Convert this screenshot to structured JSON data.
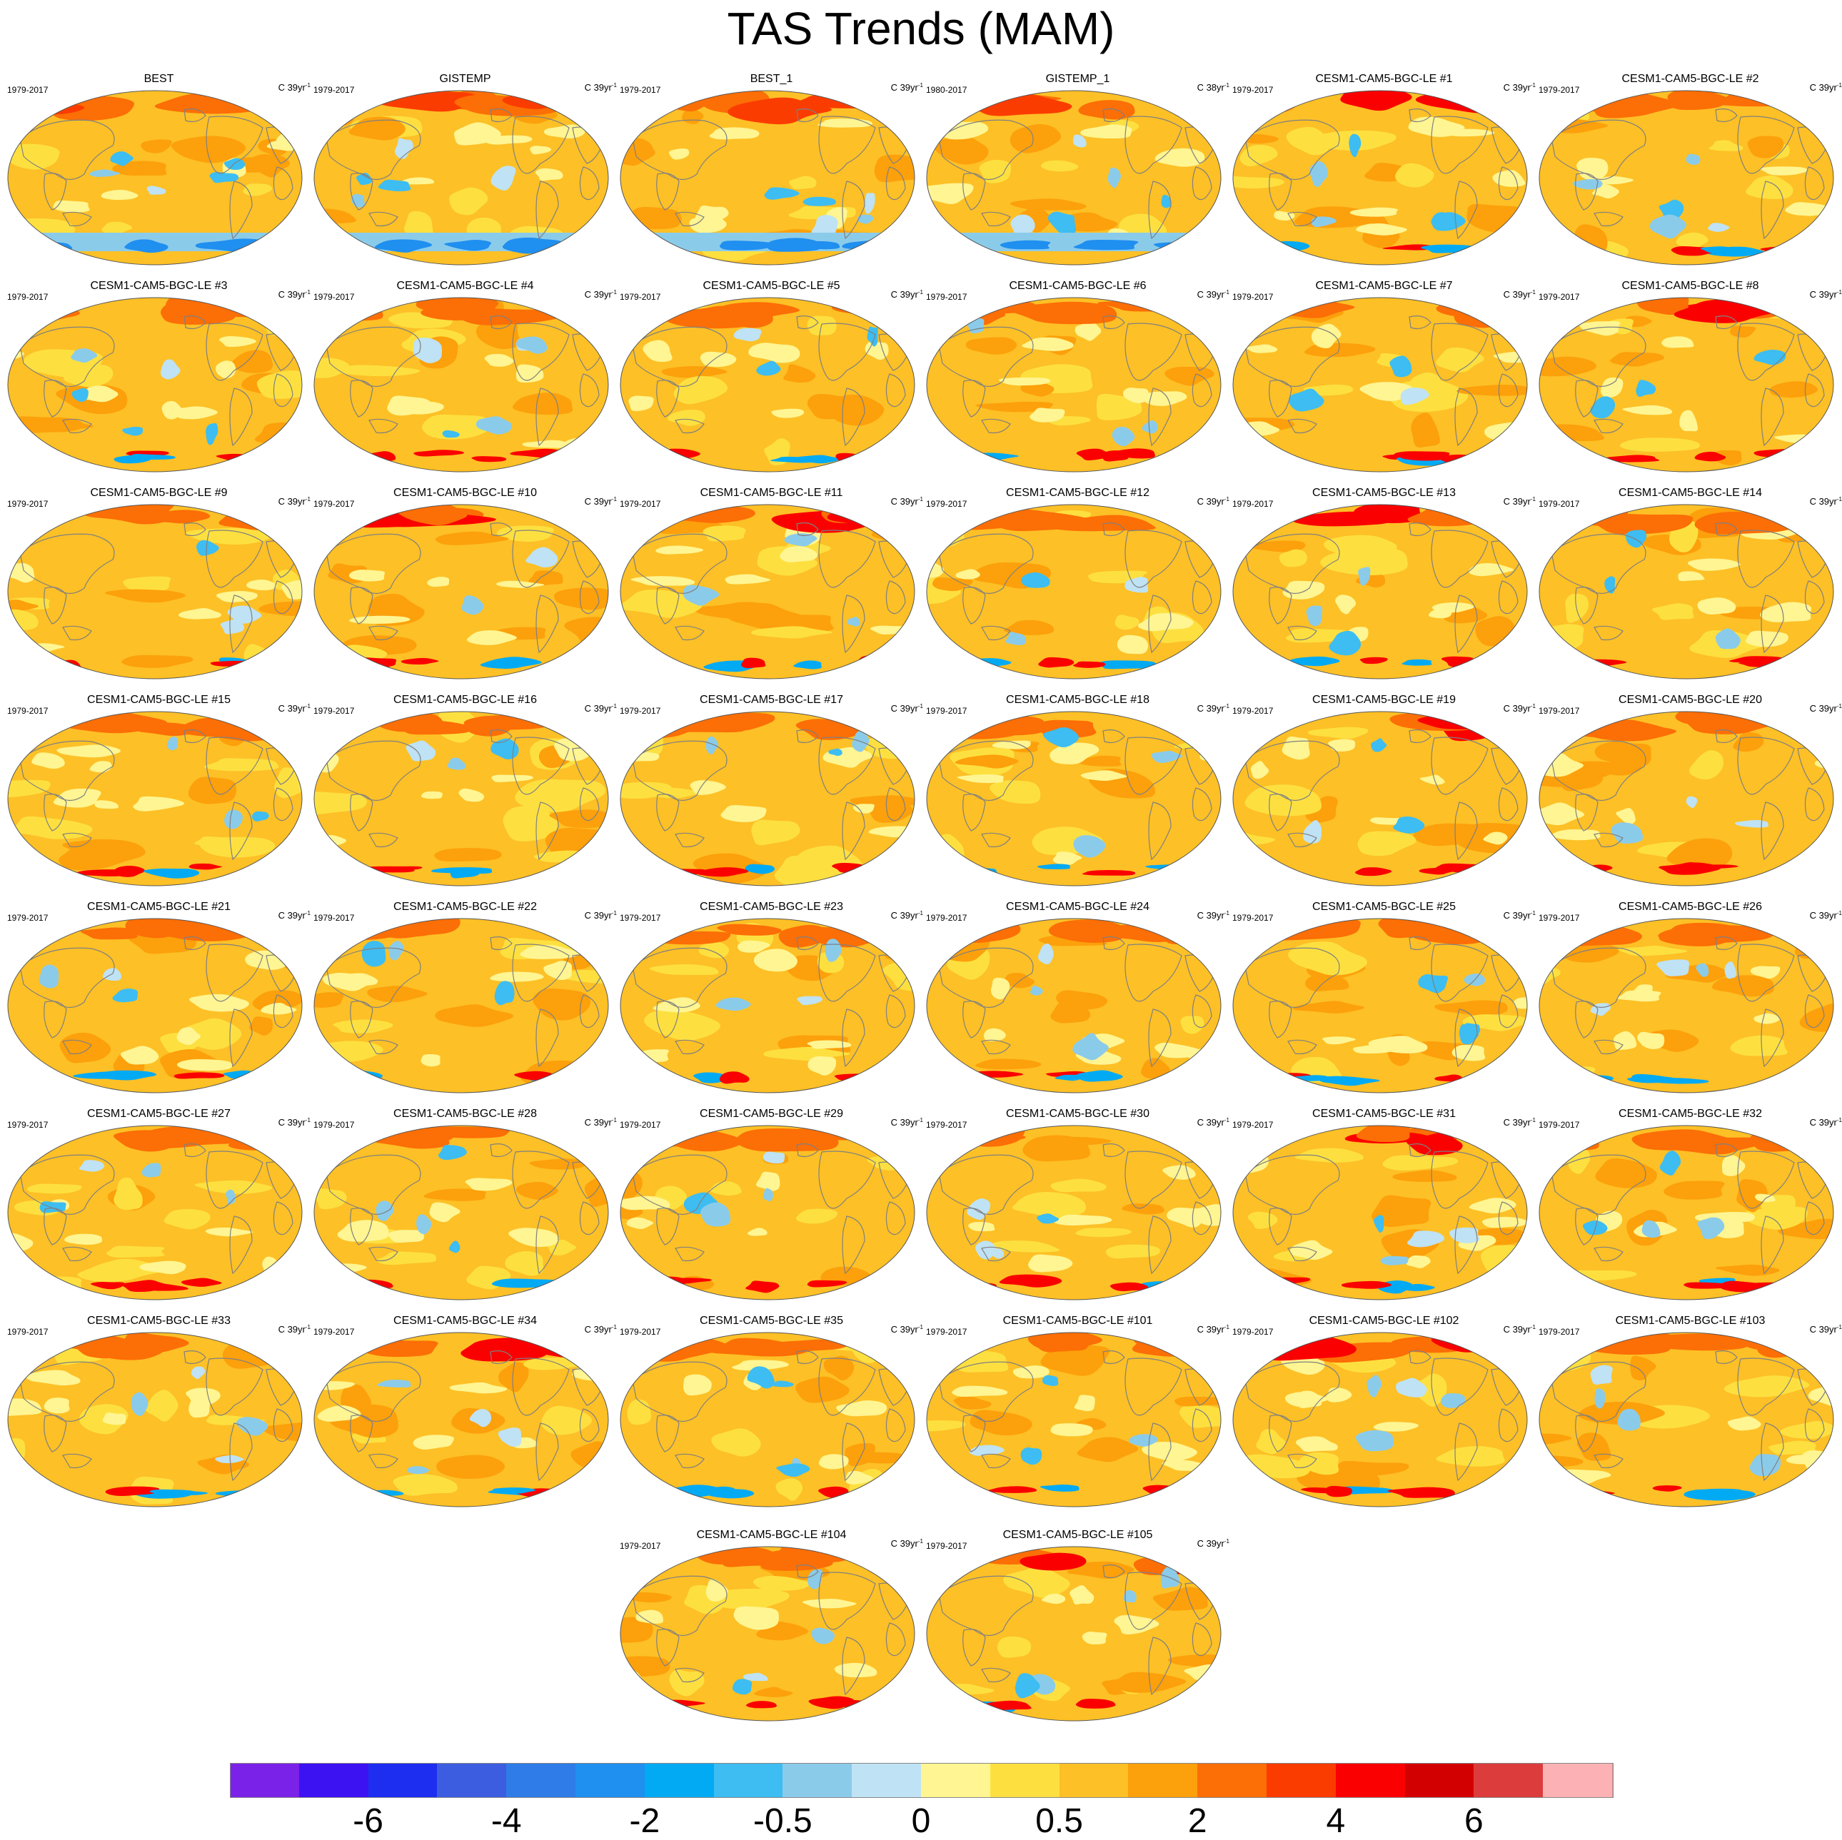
{
  "title": "TAS Trends (MAM)",
  "colors": {
    "levels": [
      "#7b22e8",
      "#3c12f2",
      "#1e2ef0",
      "#3c5de0",
      "#2f7ce8",
      "#1f8ff0",
      "#02aaf4",
      "#3dbdf1",
      "#8bcbea",
      "#bfe2f4",
      "#fff592",
      "#fde040",
      "#fdc026",
      "#fca00b",
      "#fc6e06",
      "#fb3c00",
      "#fb0000",
      "#d20000",
      "#dc3c3c",
      "#fcb2b4"
    ],
    "land_outline": "#808080",
    "map_edge": "#555555"
  },
  "chart_data": {
    "type": "map-panel-grid",
    "variable": "TAS",
    "season": "MAM",
    "title": "TAS Trends (MAM)",
    "projection": "Robinson",
    "colorbar": {
      "tick_labels": [
        "-6",
        "-4",
        "-2",
        "-0.5",
        "0",
        "0.5",
        "2",
        "4",
        "6"
      ],
      "n_colors": 20
    },
    "panels": [
      {
        "name": "BEST",
        "period": "1979-2017",
        "unit": "C 39yr",
        "exp": "-1",
        "style": 1,
        "seed": 11
      },
      {
        "name": "GISTEMP",
        "period": "1979-2017",
        "unit": "C 39yr",
        "exp": "-1",
        "style": 1,
        "seed": 12
      },
      {
        "name": "BEST_1",
        "period": "1979-2017",
        "unit": "C 39yr",
        "exp": "-1",
        "style": 1,
        "seed": 13
      },
      {
        "name": "GISTEMP_1",
        "period": "1980-2017",
        "unit": "C 38yr",
        "exp": "-1",
        "style": 1,
        "seed": 14
      },
      {
        "name": "CESM1-CAM5-BGC-LE #1",
        "period": "1979-2017",
        "unit": "C 39yr",
        "exp": "-1",
        "style": 2,
        "seed": 21
      },
      {
        "name": "CESM1-CAM5-BGC-LE #2",
        "period": "1979-2017",
        "unit": "C 39yr",
        "exp": "-1",
        "style": 0,
        "seed": 22
      },
      {
        "name": "CESM1-CAM5-BGC-LE #3",
        "period": "1979-2017",
        "unit": "C 39yr",
        "exp": "-1",
        "style": 0,
        "seed": 23
      },
      {
        "name": "CESM1-CAM5-BGC-LE #4",
        "period": "1979-2017",
        "unit": "C 39yr",
        "exp": "-1",
        "style": 0,
        "seed": 24
      },
      {
        "name": "CESM1-CAM5-BGC-LE #5",
        "period": "1979-2017",
        "unit": "C 39yr",
        "exp": "-1",
        "style": 0,
        "seed": 25
      },
      {
        "name": "CESM1-CAM5-BGC-LE #6",
        "period": "1979-2017",
        "unit": "C 39yr",
        "exp": "-1",
        "style": 0,
        "seed": 26
      },
      {
        "name": "CESM1-CAM5-BGC-LE #7",
        "period": "1979-2017",
        "unit": "C 39yr",
        "exp": "-1",
        "style": 0,
        "seed": 27
      },
      {
        "name": "CESM1-CAM5-BGC-LE #8",
        "period": "1979-2017",
        "unit": "C 39yr",
        "exp": "-1",
        "style": 2,
        "seed": 28
      },
      {
        "name": "CESM1-CAM5-BGC-LE #9",
        "period": "1979-2017",
        "unit": "C 39yr",
        "exp": "-1",
        "style": 0,
        "seed": 29
      },
      {
        "name": "CESM1-CAM5-BGC-LE #10",
        "period": "1979-2017",
        "unit": "C 39yr",
        "exp": "-1",
        "style": 2,
        "seed": 30
      },
      {
        "name": "CESM1-CAM5-BGC-LE #11",
        "period": "1979-2017",
        "unit": "C 39yr",
        "exp": "-1",
        "style": 2,
        "seed": 31
      },
      {
        "name": "CESM1-CAM5-BGC-LE #12",
        "period": "1979-2017",
        "unit": "C 39yr",
        "exp": "-1",
        "style": 0,
        "seed": 32
      },
      {
        "name": "CESM1-CAM5-BGC-LE #13",
        "period": "1979-2017",
        "unit": "C 39yr",
        "exp": "-1",
        "style": 2,
        "seed": 33
      },
      {
        "name": "CESM1-CAM5-BGC-LE #14",
        "period": "1979-2017",
        "unit": "C 39yr",
        "exp": "-1",
        "style": 0,
        "seed": 34
      },
      {
        "name": "CESM1-CAM5-BGC-LE #15",
        "period": "1979-2017",
        "unit": "C 39yr",
        "exp": "-1",
        "style": 0,
        "seed": 35
      },
      {
        "name": "CESM1-CAM5-BGC-LE #16",
        "period": "1979-2017",
        "unit": "C 39yr",
        "exp": "-1",
        "style": 0,
        "seed": 36
      },
      {
        "name": "CESM1-CAM5-BGC-LE #17",
        "period": "1979-2017",
        "unit": "C 39yr",
        "exp": "-1",
        "style": 0,
        "seed": 37
      },
      {
        "name": "CESM1-CAM5-BGC-LE #18",
        "period": "1979-2017",
        "unit": "C 39yr",
        "exp": "-1",
        "style": 0,
        "seed": 38
      },
      {
        "name": "CESM1-CAM5-BGC-LE #19",
        "period": "1979-2017",
        "unit": "C 39yr",
        "exp": "-1",
        "style": 2,
        "seed": 39
      },
      {
        "name": "CESM1-CAM5-BGC-LE #20",
        "period": "1979-2017",
        "unit": "C 39yr",
        "exp": "-1",
        "style": 0,
        "seed": 40
      },
      {
        "name": "CESM1-CAM5-BGC-LE #21",
        "period": "1979-2017",
        "unit": "C 39yr",
        "exp": "-1",
        "style": 0,
        "seed": 41
      },
      {
        "name": "CESM1-CAM5-BGC-LE #22",
        "period": "1979-2017",
        "unit": "C 39yr",
        "exp": "-1",
        "style": 0,
        "seed": 42
      },
      {
        "name": "CESM1-CAM5-BGC-LE #23",
        "period": "1979-2017",
        "unit": "C 39yr",
        "exp": "-1",
        "style": 0,
        "seed": 43
      },
      {
        "name": "CESM1-CAM5-BGC-LE #24",
        "period": "1979-2017",
        "unit": "C 39yr",
        "exp": "-1",
        "style": 0,
        "seed": 44
      },
      {
        "name": "CESM1-CAM5-BGC-LE #25",
        "period": "1979-2017",
        "unit": "C 39yr",
        "exp": "-1",
        "style": 0,
        "seed": 45
      },
      {
        "name": "CESM1-CAM5-BGC-LE #26",
        "period": "1979-2017",
        "unit": "C 39yr",
        "exp": "-1",
        "style": 0,
        "seed": 46
      },
      {
        "name": "CESM1-CAM5-BGC-LE #27",
        "period": "1979-2017",
        "unit": "C 39yr",
        "exp": "-1",
        "style": 0,
        "seed": 47
      },
      {
        "name": "CESM1-CAM5-BGC-LE #28",
        "period": "1979-2017",
        "unit": "C 39yr",
        "exp": "-1",
        "style": 0,
        "seed": 48
      },
      {
        "name": "CESM1-CAM5-BGC-LE #29",
        "period": "1979-2017",
        "unit": "C 39yr",
        "exp": "-1",
        "style": 0,
        "seed": 49
      },
      {
        "name": "CESM1-CAM5-BGC-LE #30",
        "period": "1979-2017",
        "unit": "C 39yr",
        "exp": "-1",
        "style": 0,
        "seed": 50
      },
      {
        "name": "CESM1-CAM5-BGC-LE #31",
        "period": "1979-2017",
        "unit": "C 39yr",
        "exp": "-1",
        "style": 2,
        "seed": 51
      },
      {
        "name": "CESM1-CAM5-BGC-LE #32",
        "period": "1979-2017",
        "unit": "C 39yr",
        "exp": "-1",
        "style": 0,
        "seed": 52
      },
      {
        "name": "CESM1-CAM5-BGC-LE #33",
        "period": "1979-2017",
        "unit": "C 39yr",
        "exp": "-1",
        "style": 0,
        "seed": 53
      },
      {
        "name": "CESM1-CAM5-BGC-LE #34",
        "period": "1979-2017",
        "unit": "C 39yr",
        "exp": "-1",
        "style": 2,
        "seed": 54
      },
      {
        "name": "CESM1-CAM5-BGC-LE #35",
        "period": "1979-2017",
        "unit": "C 39yr",
        "exp": "-1",
        "style": 0,
        "seed": 55
      },
      {
        "name": "CESM1-CAM5-BGC-LE #101",
        "period": "1979-2017",
        "unit": "C 39yr",
        "exp": "-1",
        "style": 0,
        "seed": 56
      },
      {
        "name": "CESM1-CAM5-BGC-LE #102",
        "period": "1979-2017",
        "unit": "C 39yr",
        "exp": "-1",
        "style": 2,
        "seed": 57
      },
      {
        "name": "CESM1-CAM5-BGC-LE #103",
        "period": "1979-2017",
        "unit": "C 39yr",
        "exp": "-1",
        "style": 0,
        "seed": 58
      },
      {
        "name": "CESM1-CAM5-BGC-LE #104",
        "period": "1979-2017",
        "unit": "C 39yr",
        "exp": "-1",
        "style": 0,
        "seed": 59
      },
      {
        "name": "CESM1-CAM5-BGC-LE #105",
        "period": "1979-2017",
        "unit": "C 39yr",
        "exp": "-1",
        "style": 2,
        "seed": 60
      }
    ]
  }
}
